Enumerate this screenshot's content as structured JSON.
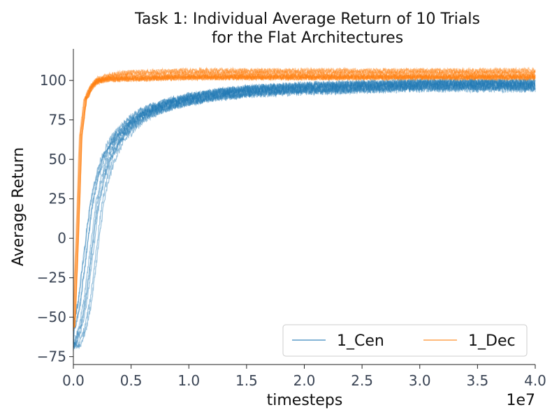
{
  "chart_data": {
    "type": "line",
    "title_lines": [
      "Task 1: Individual Average Return of 10 Trials",
      "for the Flat Architectures"
    ],
    "xlabel": "timesteps",
    "ylabel": "Average Return",
    "x_offset_label": "1e7",
    "xlim": [
      0,
      4.0
    ],
    "ylim": [
      -80,
      120
    ],
    "x_ticks": [
      0.0,
      0.5,
      1.0,
      1.5,
      2.0,
      2.5,
      3.0,
      3.5,
      4.0
    ],
    "x_tick_labels": [
      "0.0",
      "0.5",
      "1.0",
      "1.5",
      "2.0",
      "2.5",
      "3.0",
      "3.5",
      "4.0"
    ],
    "y_ticks": [
      -75,
      -50,
      -25,
      0,
      25,
      50,
      75,
      100
    ],
    "y_tick_labels": [
      "−75",
      "−50",
      "−25",
      "0",
      "25",
      "50",
      "75",
      "100"
    ],
    "grid": false,
    "legend_position": "lower-right",
    "series": [
      {
        "name": "1_Cen",
        "color": "#1f77b4",
        "x": [
          0.0,
          0.05,
          0.1,
          0.15,
          0.2,
          0.25,
          0.3,
          0.35,
          0.4,
          0.5,
          0.6,
          0.75,
          0.9,
          1.0,
          1.25,
          1.5,
          1.75,
          2.0,
          2.5,
          3.0,
          3.5,
          4.0
        ],
        "y": [
          -68,
          -58,
          -40,
          -10,
          20,
          38,
          50,
          58,
          64,
          72,
          78,
          83,
          86,
          88,
          91,
          93,
          94,
          95,
          96,
          97,
          97,
          97
        ]
      },
      {
        "name": "1_Dec",
        "color": "#ff7f0e",
        "x": [
          0.0,
          0.03,
          0.06,
          0.1,
          0.15,
          0.2,
          0.3,
          0.5,
          1.0,
          2.0,
          3.0,
          4.0
        ],
        "y": [
          -55,
          0,
          65,
          88,
          96,
          100,
          102,
          103,
          104,
          104,
          104,
          104
        ]
      }
    ]
  }
}
